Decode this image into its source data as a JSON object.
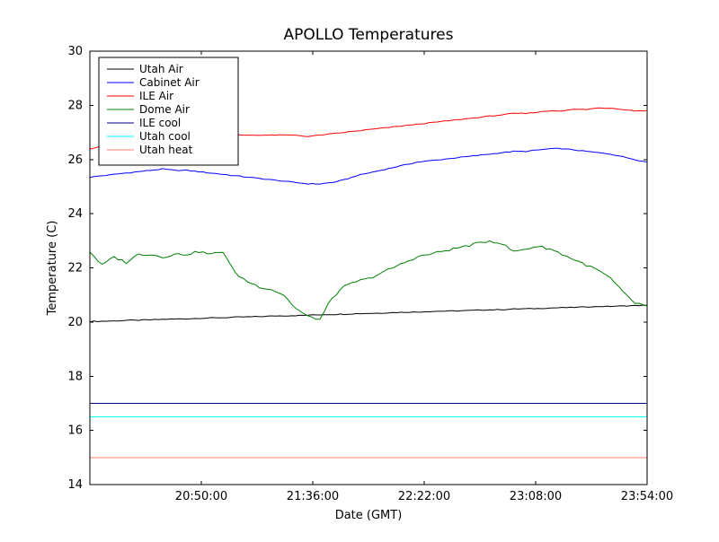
{
  "chart_data": {
    "type": "line",
    "title": "APOLLO Temperatures",
    "xlabel": "Date (GMT)",
    "ylabel": "Temperature (C)",
    "ylim": [
      14,
      30
    ],
    "yticks": [
      {
        "v": 14,
        "label": "14"
      },
      {
        "v": 16,
        "label": "16"
      },
      {
        "v": 18,
        "label": "18"
      },
      {
        "v": 20,
        "label": "20"
      },
      {
        "v": 22,
        "label": "22"
      },
      {
        "v": 24,
        "label": "24"
      },
      {
        "v": 26,
        "label": "26"
      },
      {
        "v": 28,
        "label": "28"
      },
      {
        "v": 30,
        "label": "30"
      }
    ],
    "xlim": [
      0,
      230
    ],
    "x_unit": "minutes from plot start",
    "xticks": [
      {
        "t": 46,
        "label": "20:50:00"
      },
      {
        "t": 92,
        "label": "21:36:00"
      },
      {
        "t": 138,
        "label": "22:22:00"
      },
      {
        "t": 184,
        "label": "23:08:00"
      },
      {
        "t": 230,
        "label": "23:54:00"
      }
    ],
    "x_step": 5,
    "legend_position": "upper left",
    "grid": false,
    "axes_color": "#000000",
    "background_color": "#ffffff",
    "series": [
      {
        "name": "Utah Air",
        "color": "#000000",
        "values": [
          20.02,
          20.03,
          20.04,
          20.06,
          20.07,
          20.08,
          20.1,
          20.11,
          20.12,
          20.14,
          20.15,
          20.16,
          20.18,
          20.19,
          20.2,
          20.22,
          20.23,
          20.24,
          20.25,
          20.27,
          20.28,
          20.29,
          20.31,
          20.32,
          20.33,
          20.35,
          20.36,
          20.37,
          20.39,
          20.4,
          20.41,
          20.42,
          20.44,
          20.45,
          20.46,
          20.48,
          20.49,
          20.5,
          20.52,
          20.53,
          20.54,
          20.56,
          20.57,
          20.58,
          20.59,
          20.61,
          20.62
        ]
      },
      {
        "name": "Cabinet Air",
        "color": "#0000ff",
        "values": [
          25.35,
          25.4,
          25.45,
          25.5,
          25.55,
          25.6,
          25.65,
          25.6,
          25.6,
          25.55,
          25.5,
          25.45,
          25.4,
          25.35,
          25.3,
          25.25,
          25.2,
          25.15,
          25.1,
          25.1,
          25.15,
          25.25,
          25.4,
          25.5,
          25.6,
          25.7,
          25.8,
          25.9,
          25.95,
          26.0,
          26.05,
          26.1,
          26.15,
          26.2,
          26.25,
          26.3,
          26.3,
          26.35,
          26.4,
          26.4,
          26.35,
          26.3,
          26.25,
          26.2,
          26.1,
          26.0,
          25.9
        ]
      },
      {
        "name": "ILE Air",
        "color": "#ff0000",
        "values": [
          26.4,
          26.5,
          26.6,
          26.7,
          26.75,
          26.8,
          26.85,
          26.9,
          26.9,
          26.95,
          26.95,
          26.95,
          26.9,
          26.9,
          26.9,
          26.9,
          26.9,
          26.9,
          26.85,
          26.9,
          26.95,
          27.0,
          27.05,
          27.1,
          27.15,
          27.2,
          27.25,
          27.3,
          27.35,
          27.4,
          27.45,
          27.5,
          27.55,
          27.6,
          27.65,
          27.7,
          27.7,
          27.75,
          27.8,
          27.8,
          27.85,
          27.85,
          27.9,
          27.9,
          27.85,
          27.8,
          27.8
        ]
      },
      {
        "name": "Dome Air",
        "color": "#008000",
        "values": [
          22.6,
          22.1,
          22.4,
          22.2,
          22.5,
          22.5,
          22.4,
          22.5,
          22.5,
          22.6,
          22.5,
          22.6,
          21.8,
          21.5,
          21.3,
          21.2,
          21.0,
          20.5,
          20.2,
          20.1,
          20.9,
          21.3,
          21.5,
          21.6,
          21.8,
          22.0,
          22.2,
          22.4,
          22.5,
          22.6,
          22.7,
          22.8,
          22.9,
          23.0,
          22.9,
          22.6,
          22.7,
          22.8,
          22.7,
          22.5,
          22.3,
          22.1,
          21.9,
          21.6,
          21.1,
          20.7,
          20.6
        ]
      },
      {
        "name": "ILE cool",
        "color": "#000080",
        "flat": 17.0
      },
      {
        "name": "Utah cool",
        "color": "#00ffff",
        "flat": 16.5
      },
      {
        "name": "Utah heat",
        "color": "#fa8072",
        "flat": 15.0
      }
    ]
  }
}
